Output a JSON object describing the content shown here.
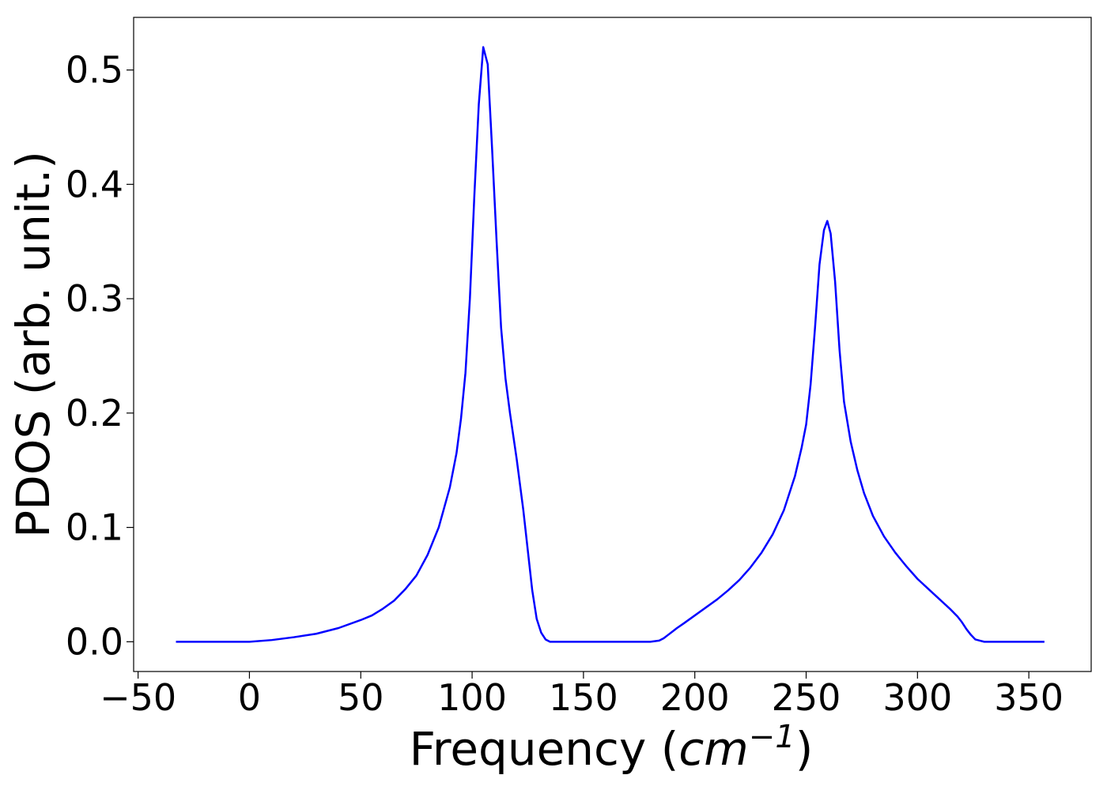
{
  "chart_data": {
    "type": "line",
    "title": "",
    "xlabel_text": "Frequency (",
    "xlabel_unit_base": "cm",
    "xlabel_unit_exp": "−1",
    "xlabel_close": ")",
    "ylabel": "PDOS (arb. unit.)",
    "xlim": [
      -52,
      378
    ],
    "ylim": [
      -0.026,
      0.546
    ],
    "xticks": [
      -50,
      0,
      50,
      100,
      150,
      200,
      250,
      300,
      350
    ],
    "xtick_labels": [
      "−50",
      "0",
      "50",
      "100",
      "150",
      "200",
      "250",
      "300",
      "350"
    ],
    "yticks": [
      0.0,
      0.1,
      0.2,
      0.3,
      0.4,
      0.5
    ],
    "ytick_labels": [
      "0.0",
      "0.1",
      "0.2",
      "0.3",
      "0.4",
      "0.5"
    ],
    "grid": false,
    "series": [
      {
        "color": "#0000ff",
        "x": [
          -33,
          -20,
          -10,
          0,
          10,
          20,
          30,
          40,
          50,
          55,
          60,
          65,
          70,
          75,
          80,
          85,
          90,
          93,
          95,
          97,
          99,
          101,
          103,
          105,
          107,
          109,
          111,
          113,
          115,
          117,
          120,
          123,
          125,
          127,
          129,
          131,
          133,
          135,
          140,
          150,
          160,
          170,
          180,
          184,
          186,
          188,
          190,
          192,
          195,
          200,
          205,
          210,
          215,
          220,
          225,
          230,
          235,
          240,
          245,
          248,
          250,
          252,
          254,
          256,
          258,
          259.5,
          261,
          263,
          265,
          267,
          270,
          273,
          276,
          280,
          285,
          290,
          295,
          300,
          305,
          310,
          315,
          318,
          320,
          322,
          324,
          326,
          328,
          330,
          335,
          345,
          357
        ],
        "y": [
          0.0,
          0.0,
          0.0,
          0.0,
          0.0015,
          0.004,
          0.007,
          0.012,
          0.019,
          0.023,
          0.029,
          0.036,
          0.046,
          0.058,
          0.076,
          0.1,
          0.135,
          0.165,
          0.195,
          0.235,
          0.3,
          0.39,
          0.47,
          0.52,
          0.505,
          0.43,
          0.35,
          0.275,
          0.23,
          0.2,
          0.16,
          0.115,
          0.08,
          0.045,
          0.02,
          0.008,
          0.002,
          0.0,
          0.0,
          0.0,
          0.0,
          0.0,
          0.0,
          0.001,
          0.003,
          0.006,
          0.009,
          0.012,
          0.016,
          0.023,
          0.03,
          0.037,
          0.045,
          0.054,
          0.065,
          0.078,
          0.094,
          0.115,
          0.145,
          0.17,
          0.19,
          0.225,
          0.275,
          0.33,
          0.36,
          0.368,
          0.357,
          0.315,
          0.255,
          0.21,
          0.175,
          0.15,
          0.13,
          0.11,
          0.092,
          0.078,
          0.066,
          0.055,
          0.046,
          0.037,
          0.028,
          0.022,
          0.017,
          0.011,
          0.006,
          0.002,
          0.001,
          0.0,
          0.0,
          0.0,
          0.0
        ]
      }
    ]
  }
}
